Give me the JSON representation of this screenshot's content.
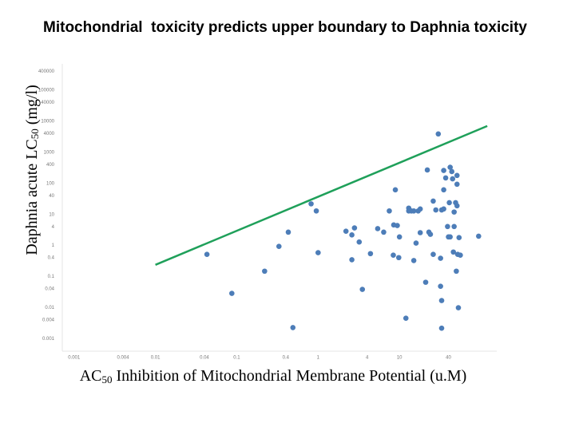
{
  "chart_data": {
    "type": "scatter",
    "title": "Mitochondrial  toxicity predicts upper boundary to Daphnia toxicity",
    "y_label": [
      "Daphnia acute LC",
      "50",
      " (mg/l)"
    ],
    "x_label": [
      "AC",
      "50",
      " Inhibition of Mitochondrial Membrane Potential (u.M)"
    ],
    "log_x": true,
    "log_y": true,
    "xlim": [
      0.00075,
      150
    ],
    "ylim": [
      0.0004,
      700000
    ],
    "xticks": [
      0.001,
      0.004,
      0.01,
      0.04,
      0.1,
      0.4,
      1,
      4,
      10,
      40
    ],
    "yticks": [
      0.001,
      0.004,
      0.01,
      0.04,
      0.1,
      0.4,
      1,
      4,
      10,
      40,
      100,
      400,
      1000,
      4000,
      10000,
      40000,
      100000,
      400000
    ],
    "points": {
      "color": "#4d7db8",
      "x": [
        0.043,
        0.087,
        0.22,
        0.33,
        0.43,
        0.49,
        0.82,
        0.95,
        1.0,
        2.2,
        2.6,
        2.6,
        2.8,
        3.5,
        3.2,
        4.4,
        5.4,
        6.4,
        7.5,
        8.4,
        8.5,
        9.4,
        8.9,
        9.8,
        10,
        12,
        13,
        13,
        14,
        15,
        15,
        16,
        17,
        18,
        18,
        22,
        21,
        23,
        26,
        24,
        26,
        30,
        28,
        32,
        32,
        33,
        33,
        33,
        35,
        35,
        35,
        37,
        39,
        40,
        42,
        41,
        42,
        44,
        45,
        46,
        47,
        49,
        47,
        50,
        51,
        51,
        51,
        52,
        53,
        54,
        56,
        94
      ],
      "y": [
        0.52,
        0.029,
        0.15,
        0.94,
        2.7,
        0.0023,
        22,
        13,
        0.59,
        2.9,
        0.35,
        2.2,
        3.7,
        0.039,
        1.3,
        0.55,
        3.5,
        2.7,
        13,
        0.49,
        4.6,
        4.4,
        62,
        0.41,
        1.9,
        0.0046,
        16,
        13,
        13,
        13,
        0.33,
        1.2,
        13,
        2.6,
        15,
        270,
        0.066,
        2.7,
        0.52,
        2.3,
        27,
        3900,
        14,
        0.39,
        0.049,
        14,
        0.017,
        0.0022,
        15,
        62,
        260,
        150,
        4.1,
        1.9,
        1.9,
        24,
        330,
        240,
        140,
        0.62,
        4.1,
        24,
        12,
        0.15,
        180,
        94,
        19,
        0.52,
        0.01,
        1.8,
        0.49,
        2.0
      ]
    },
    "trend_line": {
      "color": "#1fa05a",
      "x": [
        0.01,
        120
      ],
      "y": [
        0.24,
        7000
      ]
    }
  }
}
